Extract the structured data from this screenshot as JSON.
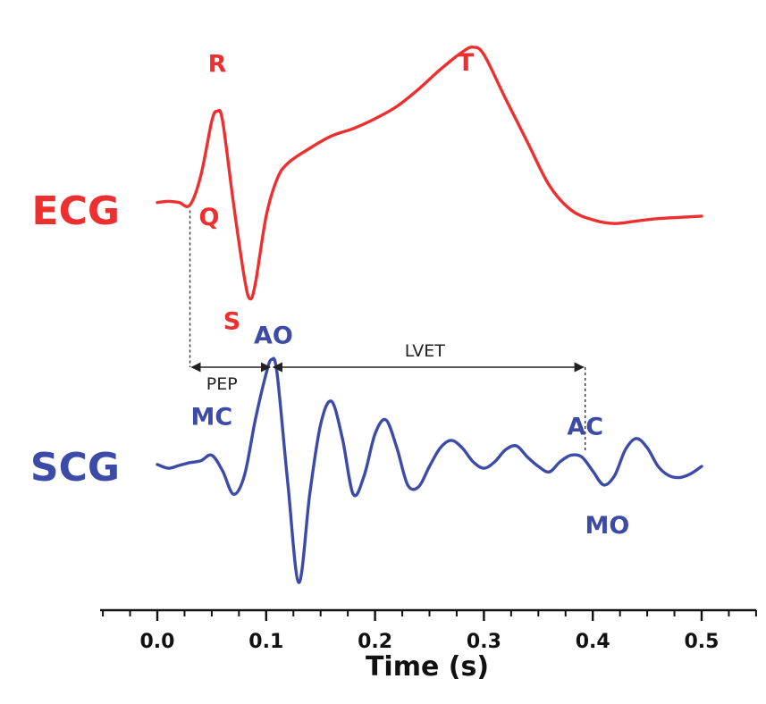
{
  "chart_data": {
    "type": "line",
    "title": "",
    "xlabel": "Time (s)",
    "ylabel": "",
    "xlim": [
      -0.05,
      0.55
    ],
    "xticks": [
      0.0,
      0.1,
      0.2,
      0.3,
      0.4,
      0.5
    ],
    "xtick_labels": [
      "0.0",
      "0.1",
      "0.2",
      "0.3",
      "0.4",
      "0.5"
    ],
    "grid": false,
    "legend": "none",
    "series": [
      {
        "name": "ECG",
        "color": "#ee2f2f",
        "x": [
          0.0,
          0.01,
          0.02,
          0.03,
          0.04,
          0.05,
          0.055,
          0.06,
          0.07,
          0.08,
          0.085,
          0.09,
          0.1,
          0.11,
          0.12,
          0.14,
          0.16,
          0.18,
          0.2,
          0.22,
          0.24,
          0.26,
          0.28,
          0.29,
          0.3,
          0.32,
          0.34,
          0.36,
          0.38,
          0.4,
          0.42,
          0.44,
          0.46,
          0.48,
          0.5
        ],
        "y": [
          0.06,
          0.07,
          0.06,
          0.04,
          0.28,
          0.72,
          0.8,
          0.72,
          0.05,
          -0.55,
          -0.72,
          -0.6,
          -0.05,
          0.25,
          0.38,
          0.5,
          0.6,
          0.66,
          0.74,
          0.84,
          0.98,
          1.14,
          1.28,
          1.32,
          1.26,
          0.9,
          0.55,
          0.2,
          0.0,
          -0.08,
          -0.11,
          -0.09,
          -0.07,
          -0.06,
          -0.05
        ]
      },
      {
        "name": "SCG",
        "color": "#3c4aa8",
        "x": [
          0.0,
          0.01,
          0.02,
          0.03,
          0.04,
          0.05,
          0.06,
          0.07,
          0.08,
          0.09,
          0.1,
          0.105,
          0.11,
          0.12,
          0.13,
          0.14,
          0.15,
          0.16,
          0.17,
          0.18,
          0.19,
          0.2,
          0.21,
          0.22,
          0.23,
          0.24,
          0.25,
          0.26,
          0.27,
          0.28,
          0.29,
          0.3,
          0.31,
          0.32,
          0.33,
          0.34,
          0.35,
          0.36,
          0.37,
          0.38,
          0.39,
          0.4,
          0.41,
          0.42,
          0.43,
          0.44,
          0.45,
          0.46,
          0.47,
          0.48,
          0.49,
          0.5
        ],
        "y": [
          0.02,
          -0.02,
          0.01,
          0.04,
          0.06,
          0.12,
          -0.05,
          -0.3,
          -0.1,
          0.5,
          1.0,
          1.15,
          1.0,
          -0.2,
          -1.25,
          -0.3,
          0.45,
          0.7,
          0.3,
          -0.3,
          -0.1,
          0.35,
          0.5,
          0.2,
          -0.2,
          -0.22,
          0.0,
          0.2,
          0.28,
          0.2,
          0.05,
          -0.02,
          0.05,
          0.18,
          0.22,
          0.1,
          0.0,
          -0.06,
          0.05,
          0.12,
          0.1,
          -0.05,
          -0.2,
          -0.1,
          0.18,
          0.3,
          0.2,
          0.0,
          -0.1,
          -0.12,
          -0.08,
          0.0
        ]
      }
    ],
    "annotations": [
      {
        "text": "R",
        "series": "ECG",
        "x": 0.055
      },
      {
        "text": "Q",
        "series": "ECG",
        "x": 0.032
      },
      {
        "text": "S",
        "series": "ECG",
        "x": 0.085
      },
      {
        "text": "T",
        "series": "ECG",
        "x": 0.29
      },
      {
        "text": "MC",
        "series": "SCG",
        "x": 0.05
      },
      {
        "text": "AO",
        "series": "SCG",
        "x": 0.105
      },
      {
        "text": "AC",
        "series": "SCG",
        "x": 0.393
      },
      {
        "text": "MO",
        "series": "SCG",
        "x": 0.41
      }
    ],
    "intervals": [
      {
        "name": "PEP",
        "x_start": 0.03,
        "x_end": 0.105
      },
      {
        "name": "LVET",
        "x_start": 0.105,
        "x_end": 0.393
      }
    ]
  }
}
